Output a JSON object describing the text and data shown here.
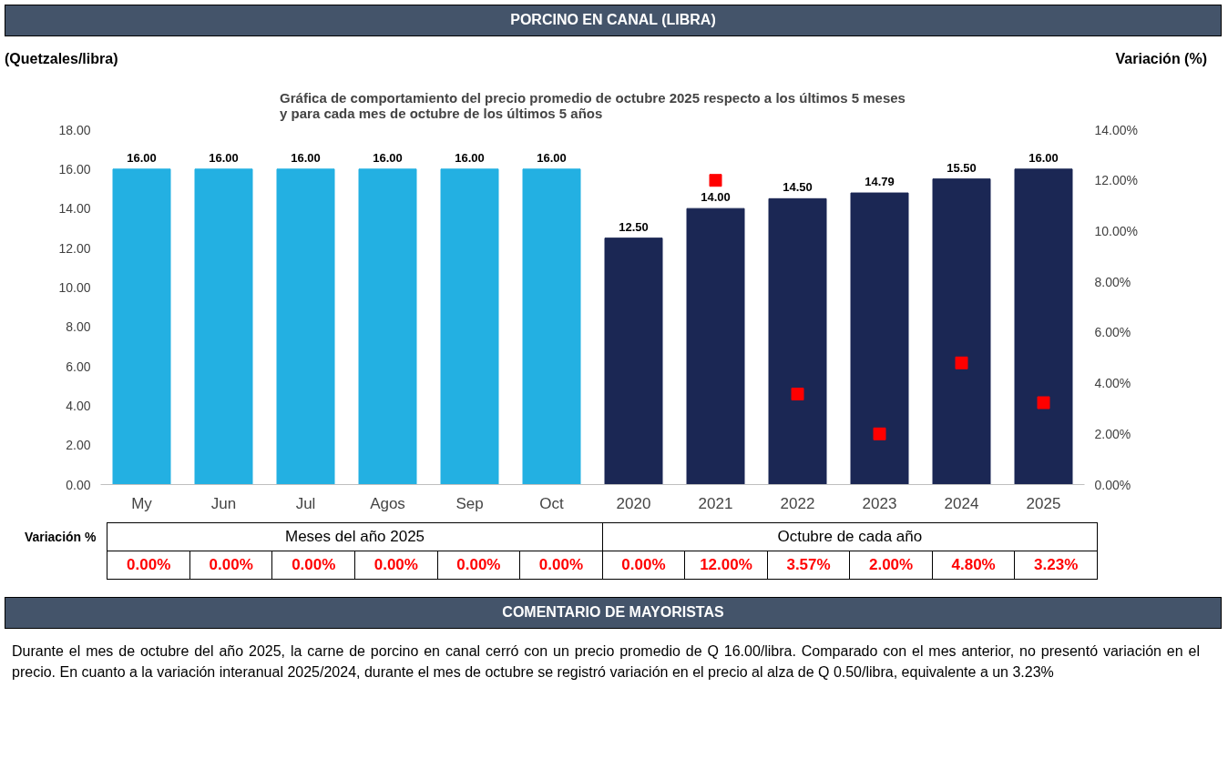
{
  "chart_data": {
    "type": "bar",
    "title": "PORCINO EN CANAL (LIBRA)",
    "subtitle": "Gráfica de comportamiento del precio promedio de octubre 2025 respecto a los últimos 5 meses\ny para cada mes de octubre de los últimos 5 años",
    "ylabel": "(Quetzales/libra)",
    "y2label": "Variación (%)",
    "categories": [
      "My",
      "Jun",
      "Jul",
      "Agos",
      "Sep",
      "Oct",
      "2020",
      "2021",
      "2022",
      "2023",
      "2024",
      "2025"
    ],
    "series": [
      {
        "colors": [
          "#23b0e2",
          "#23b0e2",
          "#23b0e2",
          "#23b0e2",
          "#23b0e2",
          "#23b0e2",
          "#1b2754",
          "#1b2754",
          "#1b2754",
          "#1b2754",
          "#1b2754",
          "#1b2754"
        ],
        "values": [
          16,
          16,
          16,
          16,
          16,
          16,
          12.5,
          14,
          14.5,
          14.79,
          15.5,
          16
        ],
        "value_labels": [
          "16.00",
          "16.00",
          "16.00",
          "16.00",
          "16.00",
          "16.00",
          "12.50",
          "14.00",
          "14.50",
          "14.79",
          "15.50",
          "16.00"
        ]
      },
      {
        "type": "scatter",
        "axis": "y2",
        "marker": "square",
        "color": "#ff0000",
        "values": [
          null,
          null,
          null,
          null,
          null,
          null,
          null,
          12,
          3.57,
          2,
          4.8,
          3.23
        ],
        "value_labels": [
          "0.00%",
          "0.00%",
          "0.00%",
          "0.00%",
          "0.00%",
          "0.00%",
          "0.00%",
          "12.00%",
          "3.57%",
          "2.00%",
          "4.80%",
          "3.23%"
        ]
      }
    ],
    "ylim": [
      0,
      18
    ],
    "yticks": [
      {
        "value": 0,
        "label": "0.00"
      },
      {
        "value": 2,
        "label": "2.00"
      },
      {
        "value": 4,
        "label": "4.00"
      },
      {
        "value": 6,
        "label": "6.00"
      },
      {
        "value": 8,
        "label": "8.00"
      },
      {
        "value": 10,
        "label": "10.00"
      },
      {
        "value": 12,
        "label": "12.00"
      },
      {
        "value": 14,
        "label": "14.00"
      },
      {
        "value": 16,
        "label": "16.00"
      },
      {
        "value": 18,
        "label": "18.00"
      }
    ],
    "y2lim": [
      0,
      14
    ],
    "y2ticks": [
      {
        "value": 0,
        "label": "0.00%"
      },
      {
        "value": 2,
        "label": "2.00%"
      },
      {
        "value": 4,
        "label": "4.00%"
      },
      {
        "value": 6,
        "label": "6.00%"
      },
      {
        "value": 8,
        "label": "8.00%"
      },
      {
        "value": 10,
        "label": "10.00%"
      },
      {
        "value": 12,
        "label": "12.00%"
      },
      {
        "value": 14,
        "label": "14.00%"
      }
    ],
    "annotations": [
      "Variación %",
      "Meses del año  2025",
      "Octubre de cada año",
      "COMENTARIO DE MAYORISTAS",
      "Durante el mes de octubre del año 2025, la carne de porcino en canal cerró con un precio promedio de Q 16.00/libra. Comparado con el mes anterior,  no presentó variación en el precio. En cuanto a la variación interanual 2025/2024, durante el mes de octubre se registró variación en el precio al alza de Q 0.50/libra, equivalente a un 3.23%"
    ]
  }
}
